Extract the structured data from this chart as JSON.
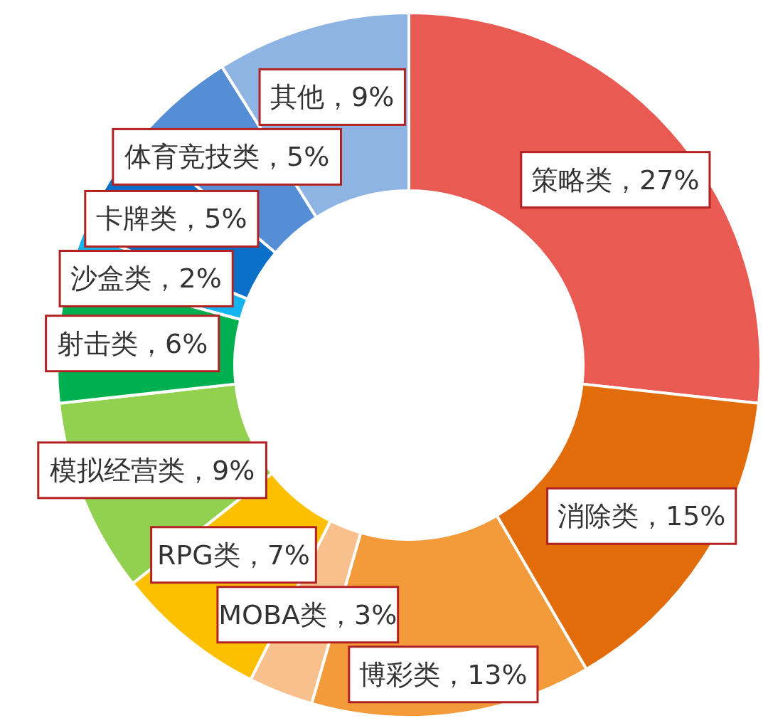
{
  "chart_data": {
    "type": "donut",
    "categories": [
      "策略类",
      "消除类",
      "博彩类",
      "MOBA类",
      "RPG类",
      "模拟经营类",
      "射击类",
      "沙盒类",
      "卡牌类",
      "体育竞技类",
      "其他"
    ],
    "values": [
      27,
      15,
      13,
      3,
      7,
      9,
      6,
      2,
      5,
      5,
      9
    ],
    "colors": [
      "#e85a52",
      "#e36c0a",
      "#f39a3a",
      "#f8c08c",
      "#fcc000",
      "#92d050",
      "#00b050",
      "#14b4f0",
      "#0a70c8",
      "#558ed5",
      "#8eb4e3"
    ],
    "value_labels": [
      "，27%",
      "，15%",
      "，13%",
      "，3%",
      "，7%",
      "，9%",
      "，6%",
      "，2%",
      "，5%",
      "，5%",
      "，9%"
    ]
  }
}
